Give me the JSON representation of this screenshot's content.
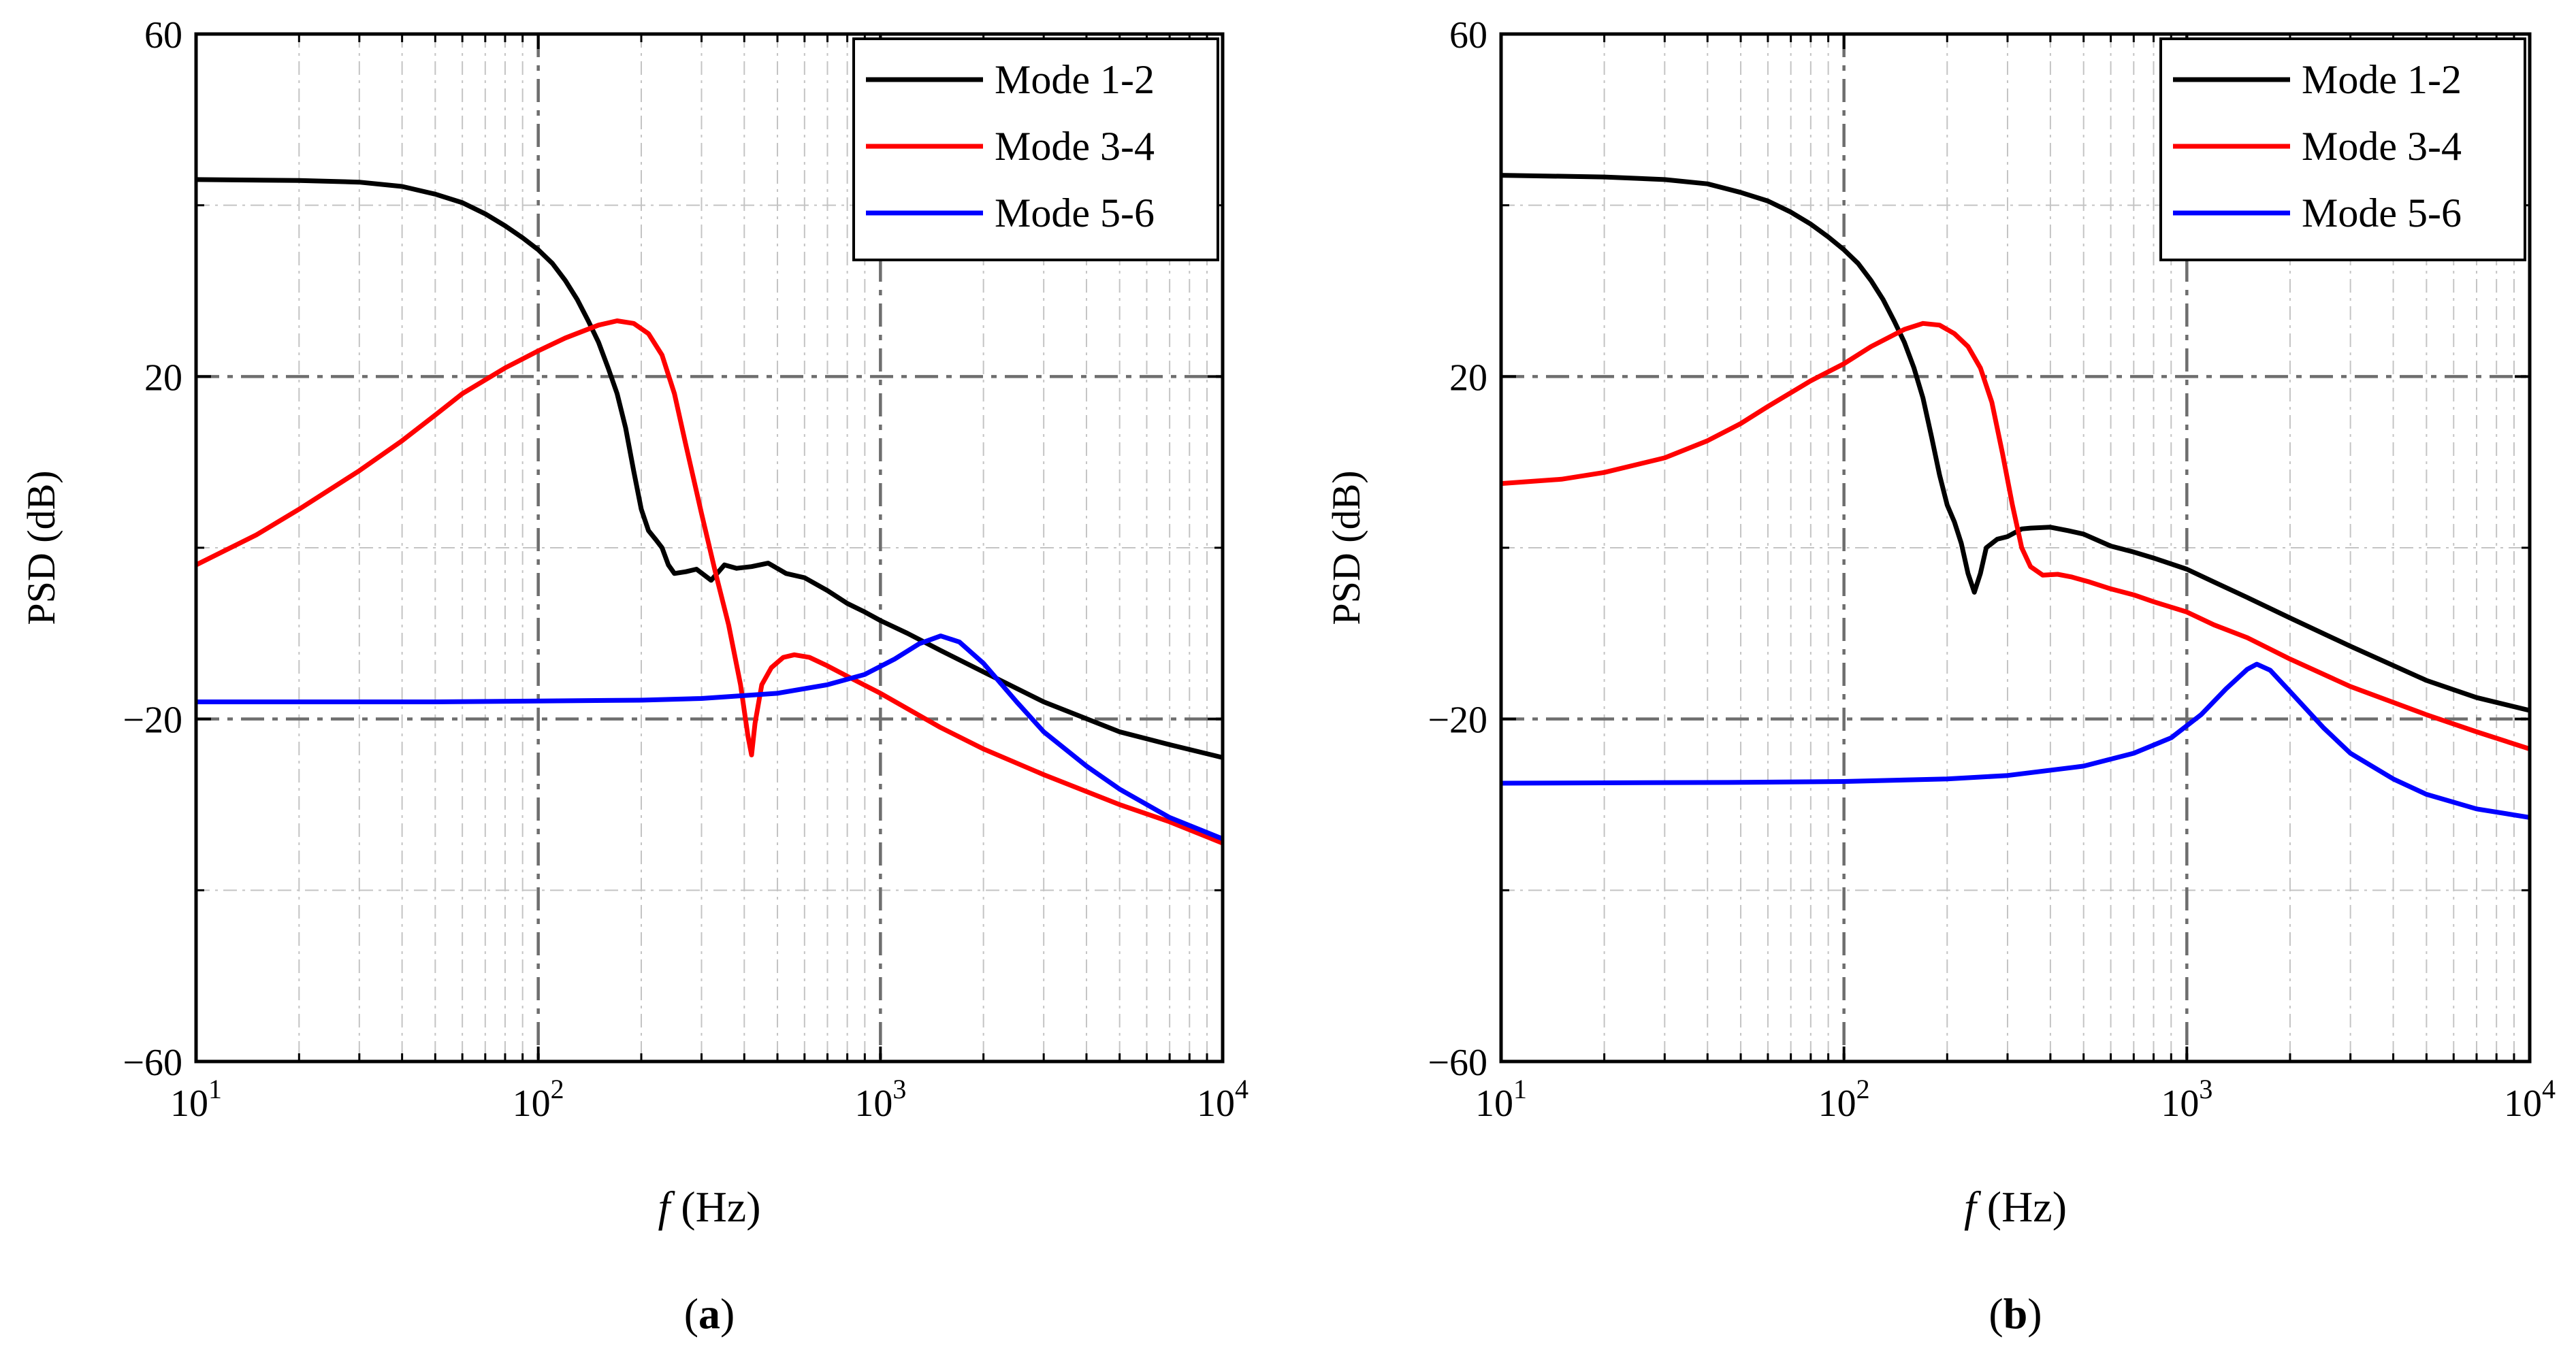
{
  "figure": {
    "panels": [
      {
        "caption_open": "(",
        "caption_letter": "a",
        "caption_close": ")"
      },
      {
        "caption_open": "(",
        "caption_letter": "b",
        "caption_close": ")"
      }
    ]
  },
  "chart_data": [
    {
      "type": "line",
      "panel": "a",
      "title": "",
      "xlabel_italic": "f",
      "xlabel_unit": "(Hz)",
      "ylabel": "PSD (dB)",
      "xscale": "log",
      "xlim": [
        10,
        10000
      ],
      "ylim": [
        -60,
        60
      ],
      "xticks": [
        {
          "base": "10",
          "exp": "1"
        },
        {
          "base": "10",
          "exp": "2"
        },
        {
          "base": "10",
          "exp": "3"
        },
        {
          "base": "10",
          "exp": "4"
        }
      ],
      "yticks": [
        "−60",
        "−20",
        "20",
        "60"
      ],
      "ytick_values": [
        -60,
        -20,
        20,
        60
      ],
      "grid": true,
      "legend_position": "top-right",
      "series": [
        {
          "name": "Mode 1-2",
          "color": "#000000",
          "points": [
            [
              10,
              43
            ],
            [
              20,
              42.9
            ],
            [
              30,
              42.7
            ],
            [
              40,
              42.2
            ],
            [
              50,
              41.3
            ],
            [
              60,
              40.3
            ],
            [
              70,
              39
            ],
            [
              80,
              37.6
            ],
            [
              90,
              36.2
            ],
            [
              100,
              34.8
            ],
            [
              110,
              33.2
            ],
            [
              120,
              31.2
            ],
            [
              130,
              29
            ],
            [
              140,
              26.5
            ],
            [
              150,
              24
            ],
            [
              160,
              21
            ],
            [
              170,
              18
            ],
            [
              180,
              14
            ],
            [
              190,
              9
            ],
            [
              200,
              4.5
            ],
            [
              210,
              2
            ],
            [
              220,
              1
            ],
            [
              230,
              0
            ],
            [
              240,
              -2
            ],
            [
              250,
              -3
            ],
            [
              270,
              -2.8
            ],
            [
              290,
              -2.5
            ],
            [
              320,
              -3.8
            ],
            [
              350,
              -2
            ],
            [
              380,
              -2.4
            ],
            [
              420,
              -2.2
            ],
            [
              470,
              -1.8
            ],
            [
              530,
              -3
            ],
            [
              600,
              -3.5
            ],
            [
              700,
              -5
            ],
            [
              800,
              -6.5
            ],
            [
              900,
              -7.5
            ],
            [
              1000,
              -8.5
            ],
            [
              1200,
              -10
            ],
            [
              1500,
              -12
            ],
            [
              2000,
              -14.5
            ],
            [
              3000,
              -18
            ],
            [
              5000,
              -21.5
            ],
            [
              7000,
              -23
            ],
            [
              10000,
              -24.5
            ]
          ]
        },
        {
          "name": "Mode 3-4",
          "color": "#ff0000",
          "points": [
            [
              10,
              -2
            ],
            [
              15,
              1.5
            ],
            [
              20,
              4.5
            ],
            [
              30,
              9
            ],
            [
              40,
              12.5
            ],
            [
              50,
              15.5
            ],
            [
              60,
              18
            ],
            [
              80,
              21
            ],
            [
              100,
              23
            ],
            [
              120,
              24.5
            ],
            [
              150,
              26
            ],
            [
              170,
              26.5
            ],
            [
              190,
              26.2
            ],
            [
              210,
              25
            ],
            [
              230,
              22.5
            ],
            [
              250,
              18
            ],
            [
              270,
              12
            ],
            [
              300,
              4
            ],
            [
              330,
              -3
            ],
            [
              360,
              -9
            ],
            [
              390,
              -16
            ],
            [
              410,
              -22
            ],
            [
              420,
              -24.2
            ],
            [
              430,
              -20.5
            ],
            [
              450,
              -16
            ],
            [
              480,
              -14
            ],
            [
              520,
              -12.8
            ],
            [
              560,
              -12.5
            ],
            [
              620,
              -12.8
            ],
            [
              700,
              -13.8
            ],
            [
              800,
              -15
            ],
            [
              1000,
              -17
            ],
            [
              1500,
              -21
            ],
            [
              2000,
              -23.5
            ],
            [
              3000,
              -26.5
            ],
            [
              5000,
              -30
            ],
            [
              7000,
              -32
            ],
            [
              10000,
              -34.5
            ]
          ]
        },
        {
          "name": "Mode 5-6",
          "color": "#0000ff",
          "points": [
            [
              10,
              -18
            ],
            [
              50,
              -18
            ],
            [
              100,
              -17.9
            ],
            [
              200,
              -17.8
            ],
            [
              300,
              -17.6
            ],
            [
              500,
              -17
            ],
            [
              700,
              -16
            ],
            [
              900,
              -14.8
            ],
            [
              1100,
              -13
            ],
            [
              1300,
              -11.2
            ],
            [
              1500,
              -10.3
            ],
            [
              1700,
              -11
            ],
            [
              2000,
              -13.5
            ],
            [
              2500,
              -18
            ],
            [
              3000,
              -21.5
            ],
            [
              4000,
              -25.5
            ],
            [
              5000,
              -28.2
            ],
            [
              7000,
              -31.5
            ],
            [
              10000,
              -34
            ]
          ]
        }
      ]
    },
    {
      "type": "line",
      "panel": "b",
      "title": "",
      "xlabel_italic": "f",
      "xlabel_unit": "(Hz)",
      "ylabel": "PSD (dB)",
      "xscale": "log",
      "xlim": [
        10,
        10000
      ],
      "ylim": [
        -60,
        60
      ],
      "xticks": [
        {
          "base": "10",
          "exp": "1"
        },
        {
          "base": "10",
          "exp": "2"
        },
        {
          "base": "10",
          "exp": "3"
        },
        {
          "base": "10",
          "exp": "4"
        }
      ],
      "yticks": [
        "−60",
        "−20",
        "20",
        "60"
      ],
      "ytick_values": [
        -60,
        -20,
        20,
        60
      ],
      "grid": true,
      "legend_position": "top-right",
      "series": [
        {
          "name": "Mode 1-2",
          "color": "#000000",
          "points": [
            [
              10,
              43.5
            ],
            [
              20,
              43.3
            ],
            [
              30,
              43
            ],
            [
              40,
              42.5
            ],
            [
              50,
              41.5
            ],
            [
              60,
              40.5
            ],
            [
              70,
              39.2
            ],
            [
              80,
              37.8
            ],
            [
              90,
              36.3
            ],
            [
              100,
              34.8
            ],
            [
              110,
              33.2
            ],
            [
              120,
              31.2
            ],
            [
              130,
              29
            ],
            [
              140,
              26.5
            ],
            [
              150,
              24
            ],
            [
              160,
              21
            ],
            [
              170,
              17.5
            ],
            [
              180,
              13
            ],
            [
              190,
              8.5
            ],
            [
              200,
              5
            ],
            [
              210,
              3
            ],
            [
              220,
              0.5
            ],
            [
              230,
              -3
            ],
            [
              240,
              -5.2
            ],
            [
              250,
              -3
            ],
            [
              260,
              0
            ],
            [
              280,
              1
            ],
            [
              300,
              1.3
            ],
            [
              330,
              2.2
            ],
            [
              350,
              2.3
            ],
            [
              400,
              2.4
            ],
            [
              450,
              2
            ],
            [
              500,
              1.6
            ],
            [
              600,
              0.2
            ],
            [
              700,
              -0.5
            ],
            [
              800,
              -1.2
            ],
            [
              1000,
              -2.5
            ],
            [
              1200,
              -4
            ],
            [
              1500,
              -5.8
            ],
            [
              2000,
              -8.2
            ],
            [
              3000,
              -11.5
            ],
            [
              5000,
              -15.5
            ],
            [
              7000,
              -17.5
            ],
            [
              10000,
              -19
            ]
          ]
        },
        {
          "name": "Mode 3-4",
          "color": "#ff0000",
          "points": [
            [
              10,
              7.5
            ],
            [
              15,
              8
            ],
            [
              20,
              8.8
            ],
            [
              30,
              10.5
            ],
            [
              40,
              12.5
            ],
            [
              50,
              14.5
            ],
            [
              60,
              16.5
            ],
            [
              80,
              19.5
            ],
            [
              100,
              21.5
            ],
            [
              120,
              23.5
            ],
            [
              150,
              25.5
            ],
            [
              170,
              26.2
            ],
            [
              190,
              26
            ],
            [
              210,
              25
            ],
            [
              230,
              23.5
            ],
            [
              250,
              21
            ],
            [
              270,
              17
            ],
            [
              290,
              11
            ],
            [
              310,
              5
            ],
            [
              330,
              0
            ],
            [
              350,
              -2.2
            ],
            [
              380,
              -3.2
            ],
            [
              420,
              -3.1
            ],
            [
              460,
              -3.4
            ],
            [
              520,
              -4
            ],
            [
              600,
              -4.8
            ],
            [
              700,
              -5.5
            ],
            [
              800,
              -6.3
            ],
            [
              1000,
              -7.5
            ],
            [
              1200,
              -9
            ],
            [
              1500,
              -10.5
            ],
            [
              2000,
              -13
            ],
            [
              3000,
              -16.2
            ],
            [
              5000,
              -19.5
            ],
            [
              7000,
              -21.5
            ],
            [
              10000,
              -23.5
            ]
          ]
        },
        {
          "name": "Mode 5-6",
          "color": "#0000ff",
          "points": [
            [
              10,
              -27.5
            ],
            [
              50,
              -27.4
            ],
            [
              100,
              -27.3
            ],
            [
              200,
              -27
            ],
            [
              300,
              -26.6
            ],
            [
              500,
              -25.5
            ],
            [
              700,
              -24
            ],
            [
              900,
              -22.2
            ],
            [
              1100,
              -19.5
            ],
            [
              1300,
              -16.5
            ],
            [
              1500,
              -14.2
            ],
            [
              1600,
              -13.6
            ],
            [
              1750,
              -14.3
            ],
            [
              2000,
              -16.8
            ],
            [
              2500,
              -21
            ],
            [
              3000,
              -24
            ],
            [
              4000,
              -27
            ],
            [
              5000,
              -28.8
            ],
            [
              7000,
              -30.5
            ],
            [
              10000,
              -31.5
            ]
          ]
        }
      ]
    }
  ]
}
